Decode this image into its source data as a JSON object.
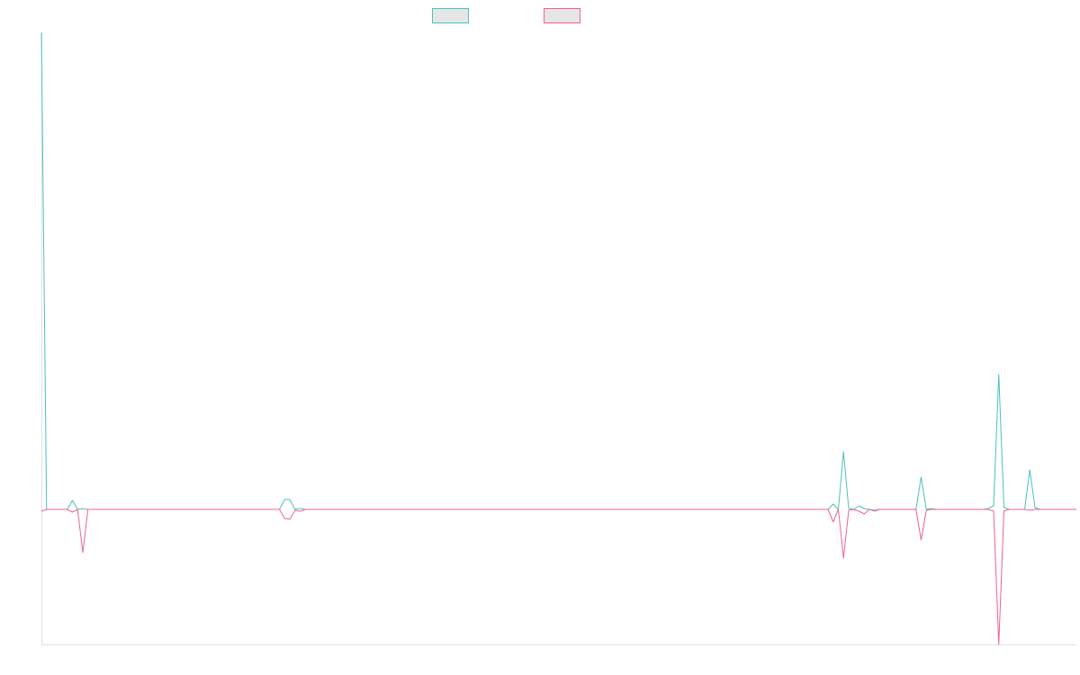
{
  "colors": {
    "series_1": "#4bc0c0",
    "series_2": "#f0628f",
    "legend_fill": "#e6e6e6",
    "axis": "#e0e0e0",
    "background": "#ffffff"
  },
  "chart_data": {
    "type": "line",
    "title": "",
    "xlabel": "",
    "ylabel": "",
    "grid": false,
    "legend_position": "top",
    "x_count": 201,
    "ylim": [
      -150,
      530
    ],
    "series": [
      {
        "key": "series_1",
        "sparse": [
          [
            0,
            530
          ],
          [
            1,
            0
          ],
          [
            6,
            10
          ],
          [
            7,
            0
          ],
          [
            8,
            1
          ],
          [
            9,
            0
          ],
          [
            47,
            11
          ],
          [
            48,
            11
          ],
          [
            49,
            0
          ],
          [
            50,
            1
          ],
          [
            51,
            0
          ],
          [
            152,
            0
          ],
          [
            153,
            6
          ],
          [
            154,
            0
          ],
          [
            155,
            64
          ],
          [
            156,
            1
          ],
          [
            157,
            0
          ],
          [
            158,
            4
          ],
          [
            159,
            1
          ],
          [
            160,
            0
          ],
          [
            161,
            -2
          ],
          [
            162,
            0
          ],
          [
            169,
            0
          ],
          [
            170,
            36
          ],
          [
            171,
            0
          ],
          [
            172,
            1
          ],
          [
            173,
            0
          ],
          [
            183,
            1
          ],
          [
            184,
            4
          ],
          [
            185,
            150
          ],
          [
            186,
            2
          ],
          [
            187,
            0
          ],
          [
            190,
            0
          ],
          [
            191,
            44
          ],
          [
            192,
            2
          ],
          [
            193,
            0
          ],
          [
            200,
            0
          ]
        ]
      },
      {
        "key": "series_2",
        "sparse": [
          [
            0,
            -2
          ],
          [
            1,
            0
          ],
          [
            6,
            -3
          ],
          [
            7,
            0
          ],
          [
            8,
            -48
          ],
          [
            9,
            0
          ],
          [
            47,
            -10
          ],
          [
            48,
            -11
          ],
          [
            49,
            -1
          ],
          [
            50,
            -2
          ],
          [
            51,
            0
          ],
          [
            152,
            0
          ],
          [
            153,
            -14
          ],
          [
            154,
            0
          ],
          [
            155,
            -54
          ],
          [
            156,
            -1
          ],
          [
            157,
            0
          ],
          [
            158,
            -2
          ],
          [
            159,
            -5
          ],
          [
            160,
            0
          ],
          [
            161,
            -1
          ],
          [
            162,
            0
          ],
          [
            169,
            0
          ],
          [
            170,
            -34
          ],
          [
            171,
            -1
          ],
          [
            172,
            0
          ],
          [
            183,
            0
          ],
          [
            184,
            -2
          ],
          [
            185,
            -150
          ],
          [
            186,
            -2
          ],
          [
            187,
            0
          ],
          [
            190,
            0
          ],
          [
            191,
            -1
          ],
          [
            192,
            0
          ],
          [
            200,
            0
          ]
        ]
      }
    ]
  }
}
